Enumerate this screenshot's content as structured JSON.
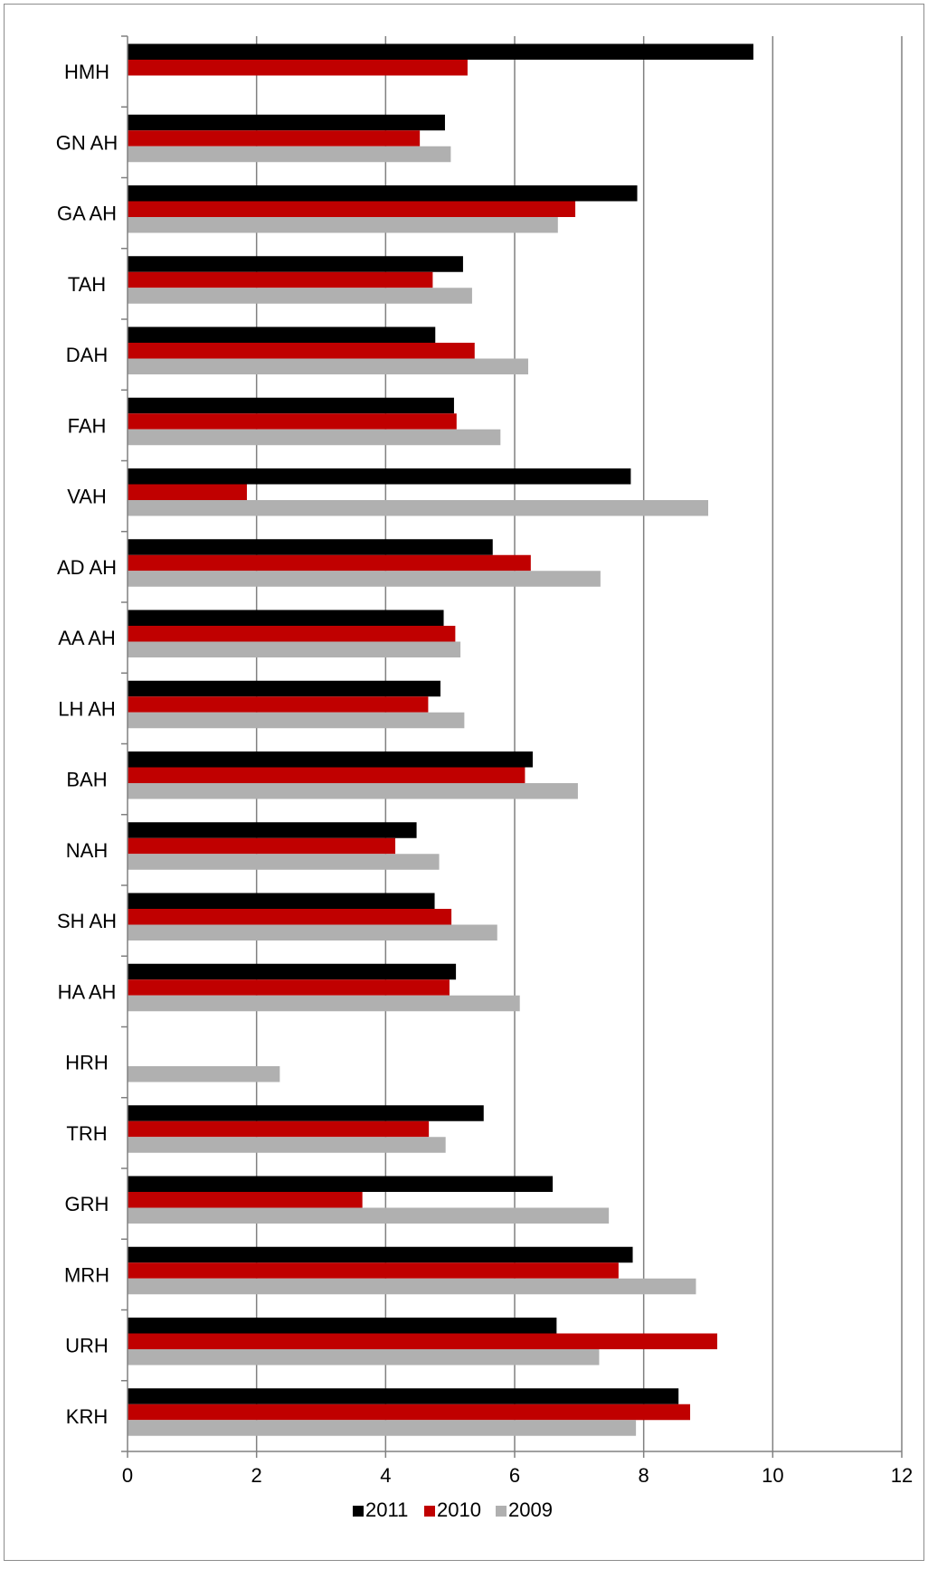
{
  "chart_data": {
    "type": "bar",
    "orientation": "horizontal",
    "categories": [
      "HMH",
      "GN AH",
      "GA AH",
      "TAH",
      "DAH",
      "FAH",
      "VAH",
      "AD AH",
      "AA AH",
      "LH AH",
      "BAH",
      "NAH",
      "SH AH",
      "HA AH",
      "HRH",
      "TRH",
      "GRH",
      "MRH",
      "URH",
      "KRH"
    ],
    "series": [
      {
        "name": "2011",
        "color": "#000000",
        "values": [
          9.7,
          4.92,
          7.9,
          5.2,
          4.77,
          5.06,
          7.8,
          5.66,
          4.9,
          4.85,
          6.28,
          4.48,
          4.76,
          5.09,
          null,
          5.52,
          6.59,
          7.83,
          6.65,
          8.54
        ]
      },
      {
        "name": "2010",
        "color": "#c00000",
        "values": [
          5.27,
          4.53,
          6.94,
          4.73,
          5.38,
          5.1,
          1.85,
          6.25,
          5.08,
          4.66,
          6.16,
          4.15,
          5.02,
          4.99,
          null,
          4.67,
          3.64,
          7.61,
          9.14,
          8.72
        ]
      },
      {
        "name": "2009",
        "color": "#b0b0b0",
        "values": [
          null,
          5.01,
          6.67,
          5.34,
          6.21,
          5.78,
          9.0,
          7.33,
          5.16,
          5.22,
          6.98,
          4.83,
          5.73,
          6.08,
          2.36,
          4.93,
          7.46,
          8.81,
          7.31,
          7.88
        ]
      }
    ],
    "x_ticks": [
      "0",
      "2",
      "4",
      "6",
      "8",
      "10",
      "12"
    ],
    "xlim": [
      0,
      12
    ],
    "grid": true,
    "legend_position": "bottom",
    "title": "",
    "xlabel": "",
    "ylabel": ""
  }
}
